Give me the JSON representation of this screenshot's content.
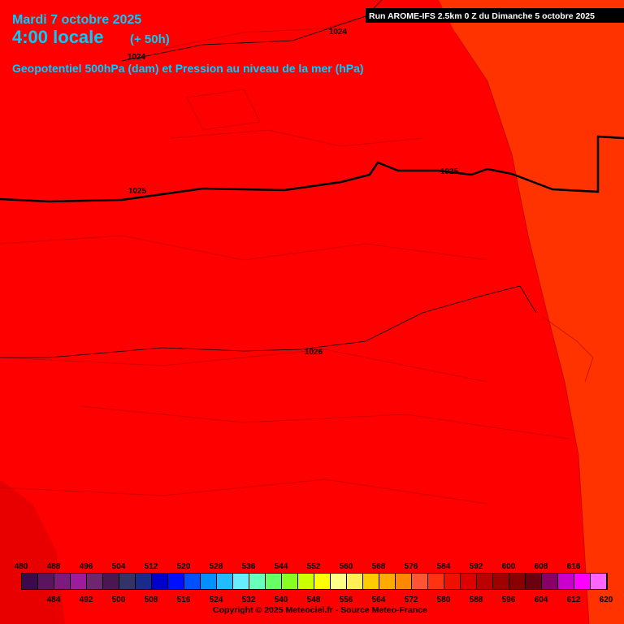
{
  "header": {
    "date": "Mardi 7 octobre 2025",
    "time": "4:00 locale",
    "lead": "(+ 50h)",
    "parameter": "Geopotentiel 500hPa (dam) et Pression au niveau de la mer (hPa)",
    "run": "Run AROME-IFS 2.5km 0 Z du Dimanche 5 octobre 2025"
  },
  "isobar_labels": [
    "1024",
    "1024",
    "1025",
    "1025",
    "1026"
  ],
  "colorbar": {
    "values": [
      480,
      484,
      488,
      492,
      496,
      500,
      504,
      508,
      512,
      516,
      520,
      524,
      528,
      532,
      536,
      540,
      544,
      548,
      552,
      556,
      560,
      564,
      568,
      572,
      576,
      580,
      584,
      588,
      592,
      596,
      600,
      604,
      608,
      612,
      616,
      620
    ],
    "colors": [
      "#3a0a4a",
      "#5c145e",
      "#7d1a7d",
      "#9c1c9c",
      "#70266e",
      "#4c1650",
      "#333366",
      "#1a2a8a",
      "#0000cc",
      "#0010ff",
      "#0050ff",
      "#0090ff",
      "#22bbff",
      "#66eeff",
      "#66ffbb",
      "#66ff66",
      "#88ff22",
      "#ccff00",
      "#ffff00",
      "#ffff88",
      "#ffee55",
      "#ffcc00",
      "#ffaa00",
      "#ff8800",
      "#ff5533",
      "#ff3311",
      "#ee1100",
      "#dd0000",
      "#bb0000",
      "#a00000",
      "#880000",
      "#6a0010",
      "#880066",
      "#cc00cc",
      "#ff00ff",
      "#ff66ff"
    ]
  },
  "copyright": "Copyright © 2025 Meteociel.fr - Source Meteo-France"
}
